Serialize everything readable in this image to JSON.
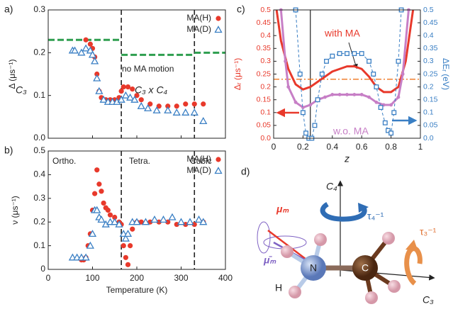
{
  "chart_data": [
    {
      "type": "scatter",
      "panel": "a)",
      "ylabel": "Δ (μs⁻¹)",
      "xlim": [
        0,
        400
      ],
      "ylim": [
        0,
        0.3
      ],
      "xticks": [
        0,
        100,
        200,
        300,
        400
      ],
      "xtick_labels": false,
      "yticks": [
        {
          "value": 0,
          "label": "0.0"
        },
        0.1,
        0.2,
        0.3
      ],
      "legend": "upper right",
      "vlines": [
        165,
        330
      ],
      "vline_dash": true,
      "ref_segments": [
        {
          "x": [
            0,
            165
          ],
          "value": 0.23
        },
        {
          "x": [
            165,
            330
          ],
          "value": 0.195
        },
        {
          "x": [
            330,
            400
          ],
          "value": 0.2
        }
      ],
      "ref_color": "#2e9e4f",
      "annotations": [
        "C₃",
        "no MA motion",
        "C₃ x C₄"
      ],
      "series": [
        {
          "name": "MA(H)",
          "color": "#e8392b",
          "marker": "circle",
          "x": [
            85,
            95,
            100,
            105,
            110,
            115,
            120,
            130,
            140,
            150,
            160,
            165,
            170,
            180,
            190,
            200,
            210,
            230,
            250,
            270,
            290,
            310,
            330,
            350
          ],
          "values": [
            0.23,
            0.22,
            0.21,
            0.19,
            0.15,
            0.11,
            0.095,
            0.09,
            0.09,
            0.09,
            0.095,
            0.11,
            0.12,
            0.12,
            0.115,
            0.1,
            0.09,
            0.08,
            0.075,
            0.075,
            0.075,
            0.08,
            0.08,
            0.08
          ]
        },
        {
          "name": "MA(D)",
          "color": "#3a7fc4",
          "marker": "triangle",
          "x": [
            55,
            60,
            75,
            85,
            95,
            100,
            105,
            110,
            115,
            125,
            135,
            145,
            155,
            165,
            175,
            185,
            195,
            210,
            225,
            245,
            270,
            290,
            310,
            330,
            350
          ],
          "values": [
            0.205,
            0.205,
            0.2,
            0.21,
            0.205,
            0.195,
            0.18,
            0.14,
            0.11,
            0.09,
            0.085,
            0.085,
            0.085,
            0.09,
            0.1,
            0.095,
            0.09,
            0.075,
            0.07,
            0.065,
            0.065,
            0.06,
            0.06,
            0.06,
            0.04
          ]
        }
      ]
    },
    {
      "type": "scatter",
      "panel": "b)",
      "ylabel": "ν (μs⁻¹)",
      "xlabel": "Temperature (K)",
      "xlim": [
        0,
        400
      ],
      "ylim": [
        0,
        0.5
      ],
      "xticks": [
        0,
        100,
        200,
        300,
        400
      ],
      "xtick_labels": true,
      "yticks": [
        0,
        0.1,
        0.2,
        0.3,
        0.4,
        0.5
      ],
      "legend": "upper right",
      "vlines": [
        165,
        330
      ],
      "vline_dash": true,
      "annotations": [
        "Ortho.",
        "Tetra.",
        "Cubic"
      ],
      "series": [
        {
          "name": "MA(H)",
          "color": "#e8392b",
          "marker": "circle",
          "x": [
            75,
            80,
            85,
            90,
            95,
            100,
            105,
            110,
            115,
            120,
            125,
            130,
            135,
            140,
            150,
            160,
            165,
            170,
            175,
            180,
            185,
            190,
            200,
            210,
            230,
            250,
            270,
            290,
            310,
            330,
            350
          ],
          "values": [
            0.04,
            0.04,
            0.05,
            0.1,
            0.15,
            0.25,
            0.32,
            0.42,
            0.36,
            0.33,
            0.28,
            0.26,
            0.25,
            0.23,
            0.22,
            0.2,
            0.19,
            0.1,
            0.05,
            0.02,
            0.1,
            0.17,
            0.2,
            0.2,
            0.2,
            0.2,
            0.2,
            0.19,
            0.19,
            0.19,
            0.2
          ]
        },
        {
          "name": "MA(D)",
          "color": "#3a7fc4",
          "marker": "triangle",
          "x": [
            55,
            65,
            75,
            85,
            95,
            100,
            105,
            110,
            115,
            120,
            130,
            140,
            150,
            160,
            170,
            175,
            180,
            190,
            200,
            220,
            240,
            260,
            280,
            300,
            320,
            340,
            350
          ],
          "values": [
            0.05,
            0.05,
            0.05,
            0.05,
            0.1,
            0.15,
            0.25,
            0.25,
            0.22,
            0.21,
            0.19,
            0.2,
            0.2,
            0.19,
            0.15,
            0.13,
            0.15,
            0.2,
            0.2,
            0.2,
            0.21,
            0.21,
            0.22,
            0.2,
            0.2,
            0.21,
            0.2
          ]
        }
      ]
    },
    {
      "type": "line",
      "panel": "c)",
      "xlabel": "z",
      "ylabel": "Δᵣ (μs⁻¹)",
      "y2label": "ΔEᵣ (eV)",
      "ylabel_color": "#e8392b",
      "y2label_color": "#3a7fc4",
      "xlim": [
        0,
        1
      ],
      "ylim": [
        0,
        0.5
      ],
      "y2lim": [
        0,
        0.5
      ],
      "xtick_labels": true,
      "xticks": [
        0,
        0.2,
        0.4,
        0.6,
        0.8,
        1
      ],
      "yticks": [
        {
          "value": 0,
          "label": "0.0"
        },
        0.05,
        0.1,
        0.15,
        0.2,
        0.25,
        0.3,
        0.35,
        0.4,
        0.45,
        0.5
      ],
      "y2ticks": [
        {
          "value": 0,
          "label": "0.0"
        },
        0.05,
        0.1,
        0.15,
        0.2,
        0.25,
        0.3,
        0.35,
        0.4,
        0.45,
        0.5
      ],
      "vlines": [
        0.25
      ],
      "vline_dash": false,
      "hlines": [
        0.23
      ],
      "hline_color": "#f08030",
      "annotations": [
        "with MA",
        "w.o. MA"
      ],
      "annotation_colors": [
        "#e8392b",
        "#c77fc6"
      ],
      "series": [
        {
          "color": "#e8392b",
          "width": 3,
          "x": [
            0.02,
            0.05,
            0.1,
            0.15,
            0.2,
            0.25,
            0.3,
            0.35,
            0.4,
            0.45,
            0.5,
            0.55,
            0.6,
            0.65,
            0.7,
            0.75,
            0.8,
            0.85,
            0.9,
            0.95
          ],
          "values": [
            0.5,
            0.38,
            0.27,
            0.21,
            0.19,
            0.2,
            0.22,
            0.24,
            0.26,
            0.27,
            0.28,
            0.28,
            0.27,
            0.24,
            0.2,
            0.18,
            0.18,
            0.2,
            0.3,
            0.5
          ]
        },
        {
          "color": "#c77fc6",
          "width": 3,
          "marker": "dot",
          "x": [
            0.05,
            0.08,
            0.1,
            0.15,
            0.2,
            0.25,
            0.3,
            0.35,
            0.4,
            0.45,
            0.5,
            0.55,
            0.6,
            0.65,
            0.7,
            0.75,
            0.8,
            0.85,
            0.88,
            0.92
          ],
          "values": [
            0.5,
            0.3,
            0.2,
            0.14,
            0.12,
            0.13,
            0.15,
            0.16,
            0.17,
            0.17,
            0.17,
            0.17,
            0.17,
            0.16,
            0.14,
            0.13,
            0.13,
            0.16,
            0.25,
            0.5
          ]
        },
        {
          "color": "#3a7fc4",
          "width": 1,
          "dash": true,
          "marker": "square",
          "axis": "y2",
          "x": [
            0.15,
            0.18,
            0.2,
            0.22,
            0.24,
            0.26,
            0.28,
            0.3,
            0.33,
            0.36,
            0.4,
            0.45,
            0.5,
            0.55,
            0.6,
            0.65,
            0.68,
            0.7,
            0.73,
            0.76,
            0.78,
            0.8,
            0.82,
            0.85,
            0.87
          ],
          "values": [
            0.5,
            0.25,
            0.1,
            0.02,
            0,
            0,
            0.05,
            0.15,
            0.25,
            0.3,
            0.32,
            0.33,
            0.33,
            0.33,
            0.33,
            0.3,
            0.25,
            0.2,
            0.12,
            0.06,
            0.03,
            0.02,
            0.1,
            0.3,
            0.5
          ]
        }
      ]
    }
  ],
  "diagram": {
    "panel": "d)",
    "labels": {
      "c4": "C₄",
      "tau4": "τ₄⁻¹",
      "mu": "μₘ",
      "mubar": "μ̄ₘ",
      "n": "N",
      "c": "C",
      "h": "H",
      "tau3": "τ₃⁻¹",
      "c3": "C₃"
    }
  }
}
